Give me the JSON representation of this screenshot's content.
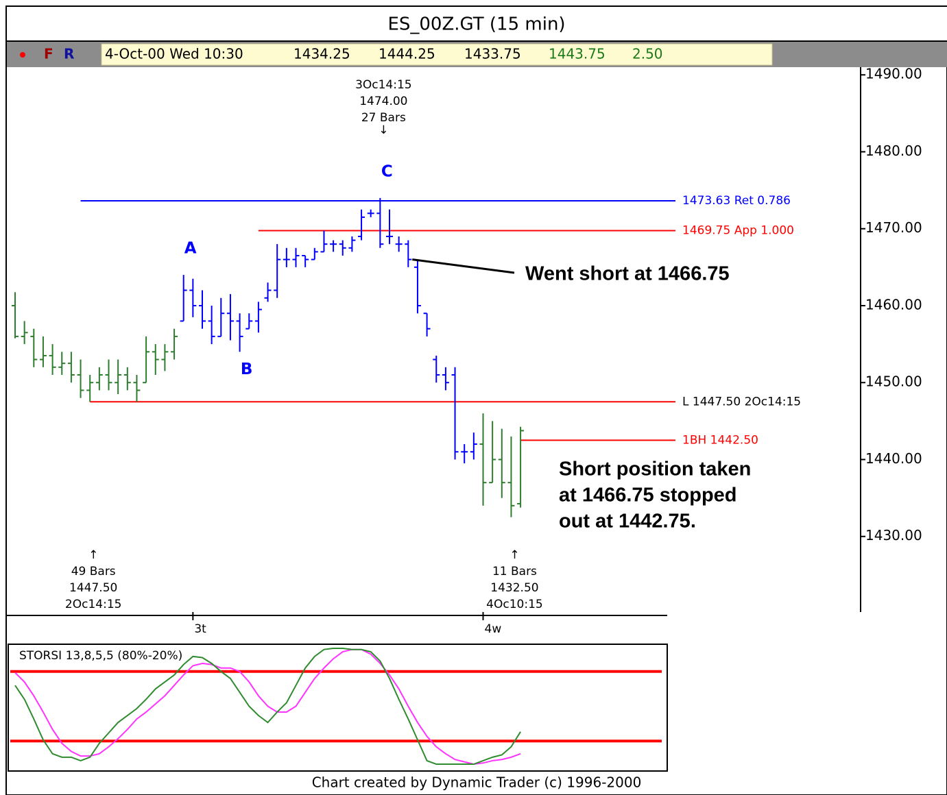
{
  "header": {
    "title": "ES_00Z.GT (15 min)",
    "status": {
      "flags": [
        "F",
        "R"
      ],
      "date": "4-Oct-00 Wed 10:30",
      "fields": [
        "1434.25",
        "1444.25",
        "1433.75",
        "1443.75",
        "2.50"
      ]
    }
  },
  "chart_data": [
    {
      "type": "ohlc",
      "categories": [
        null,
        null,
        null,
        null,
        null,
        null,
        null,
        null,
        null,
        null,
        null,
        null,
        null,
        null,
        null,
        null,
        null,
        null,
        null,
        "3t",
        null,
        null,
        null,
        null,
        null,
        null,
        null,
        null,
        null,
        null,
        null,
        null,
        null,
        null,
        null,
        null,
        null,
        null,
        null,
        null,
        null,
        null,
        null,
        null,
        null,
        null,
        null,
        null,
        null,
        null,
        "4w",
        null,
        null,
        null,
        null
      ],
      "open": [
        1460,
        1456,
        1456,
        1453,
        1453.5,
        1452,
        1452.5,
        1451,
        1449,
        1450,
        1451,
        1450,
        1451,
        1450,
        1450,
        1454,
        1453,
        1454,
        1458,
        1462,
        1460,
        1458,
        1456,
        1459,
        1458,
        1457,
        1458,
        1461,
        1462,
        1466,
        1466,
        1466.5,
        1466,
        1467,
        1468,
        1468,
        1467.5,
        1469,
        1472,
        1472,
        1469,
        1468,
        1468,
        1465,
        1459,
        1453,
        1451,
        1451,
        1441,
        1441,
        1442,
        1437,
        1440,
        1437,
        1434.25
      ],
      "high": [
        1461.75,
        1458,
        1457,
        1456,
        1455,
        1454,
        1454,
        1453,
        1451,
        1452,
        1453,
        1453,
        1452,
        1451,
        1456,
        1455,
        1455,
        1457,
        1464,
        1463.5,
        1462,
        1460,
        1461,
        1461.5,
        1459,
        1459,
        1460.5,
        1463,
        1468,
        1467.5,
        1467.5,
        1466.5,
        1467.5,
        1469.75,
        1468.5,
        1468.5,
        1469,
        1472.5,
        1472.5,
        1474,
        1472.5,
        1469,
        1468.5,
        1466,
        1459,
        1453.5,
        1452,
        1452,
        1442,
        1443.5,
        1446,
        1445,
        1444,
        1443,
        1444.25
      ],
      "low": [
        1455.75,
        1455,
        1452,
        1452,
        1451,
        1451,
        1450,
        1448,
        1447.5,
        1449,
        1449,
        1448.5,
        1449,
        1447.5,
        1450,
        1451,
        1451.5,
        1453,
        1458,
        1458.5,
        1457,
        1455,
        1456,
        1455.5,
        1454,
        1457,
        1456.5,
        1460.5,
        1461,
        1465,
        1465,
        1465,
        1466,
        1467,
        1467,
        1466.5,
        1467,
        1468.5,
        1471.5,
        1467.5,
        1468,
        1467,
        1465,
        1459,
        1456,
        1450,
        1449,
        1440,
        1439.5,
        1440,
        1434,
        1437,
        1435,
        1432.5,
        1433.75
      ],
      "close": [
        1456,
        1456.5,
        1453,
        1453.5,
        1452,
        1452.5,
        1451,
        1449,
        1450,
        1451,
        1450,
        1451,
        1450,
        1449,
        1454,
        1453,
        1454,
        1456,
        1462,
        1460,
        1458,
        1456,
        1459,
        1458,
        1456,
        1458,
        1459.5,
        1462,
        1466,
        1466,
        1466.5,
        1466,
        1467,
        1468,
        1468,
        1467.5,
        1468.5,
        1471.5,
        1472,
        1468,
        1469,
        1468,
        1466,
        1460,
        1457,
        1451,
        1450,
        1441,
        1441,
        1442,
        1437,
        1440,
        1437,
        1434,
        1443.75
      ],
      "bar_colors": [
        "#2e7d2e",
        "#2e7d2e",
        "#2e7d2e",
        "#2e7d2e",
        "#2e7d2e",
        "#2e7d2e",
        "#2e7d2e",
        "#2e7d2e",
        "#2e7d2e",
        "#2e7d2e",
        "#2e7d2e",
        "#2e7d2e",
        "#2e7d2e",
        "#2e7d2e",
        "#2e7d2e",
        "#2e7d2e",
        "#2e7d2e",
        "#2e7d2e",
        "#0000ff",
        "#0000ff",
        "#0000ff",
        "#0000ff",
        "#0000ff",
        "#0000ff",
        "#0000ff",
        "#0000ff",
        "#0000ff",
        "#0000ff",
        "#0000ff",
        "#0000ff",
        "#0000ff",
        "#0000ff",
        "#0000ff",
        "#0000ff",
        "#0000ff",
        "#0000ff",
        "#0000ff",
        "#0000ff",
        "#0000ff",
        "#0000ff",
        "#0000ff",
        "#0000ff",
        "#0000ff",
        "#0000ff",
        "#0000ff",
        "#0000ff",
        "#0000ff",
        "#0000ff",
        "#0000ff",
        "#0000ff",
        "#2e7d2e",
        "#2e7d2e",
        "#2e7d2e",
        "#2e7d2e",
        "#2e7d2e"
      ],
      "ylim": [
        1420,
        1491
      ],
      "yticks": [
        {
          "value": 1490,
          "label": "1490.00"
        },
        {
          "value": 1480,
          "label": "1480.00"
        },
        {
          "value": 1470,
          "label": "1470.00"
        },
        {
          "value": 1460,
          "label": "1460.00"
        },
        {
          "value": 1450,
          "label": "1450.00"
        },
        {
          "value": 1440,
          "label": "1440.00"
        },
        {
          "value": 1430,
          "label": "1430.00"
        }
      ],
      "levels": [
        {
          "value": 1473.63,
          "label": "1473.63 Ret 0.786",
          "color": "#0000ff",
          "label_color": "#0000ff",
          "from_bar": 7
        },
        {
          "value": 1469.75,
          "label": "1469.75 App 1.000",
          "color": "#ff0000",
          "label_color": "#ff0000",
          "from_bar": 26
        },
        {
          "value": 1447.5,
          "label": "L 1447.50 2Oc14:15",
          "color": "#ff0000",
          "label_color": "#000000",
          "from_bar": 8
        },
        {
          "value": 1442.5,
          "label": "1BH 1442.50",
          "color": "#ff0000",
          "label_color": "#ff0000",
          "from_bar": 54
        }
      ],
      "swings": [
        {
          "label": "A",
          "bar": 18,
          "side": "above"
        },
        {
          "label": "B",
          "bar": 24,
          "side": "below"
        },
        {
          "label": "C",
          "bar": 39,
          "side": "above"
        }
      ],
      "pivots": [
        {
          "bar": 39,
          "side": "above",
          "lines": [
            "3Oc14:15",
            "1474.00",
            "27 Bars"
          ]
        },
        {
          "bar": 8,
          "side": "below",
          "lines": [
            "49 Bars",
            "1447.50",
            "2Oc14:15"
          ]
        },
        {
          "bar": 53,
          "side": "below",
          "lines": [
            "11 Bars",
            "1432.50",
            "4Oc10:15"
          ]
        }
      ],
      "annotations": [
        {
          "lines": [
            "Went short at 1466.75"
          ],
          "from_bar": 42
        },
        {
          "lines": [
            "Short position taken",
            "at 1466.75 stopped",
            "out at 1442.75."
          ]
        }
      ]
    },
    {
      "type": "line",
      "title": "STORSI 13,8,5,5 (80%-20%)",
      "ylim": [
        0,
        100
      ],
      "levels": [
        80,
        20
      ],
      "level_color": "#ff0000",
      "series": [
        {
          "color": "#2e8b2e",
          "values": [
            68,
            56,
            39,
            21,
            9,
            6,
            6,
            3,
            6,
            18,
            27,
            36,
            42,
            48,
            56,
            65,
            71,
            77,
            86,
            93,
            92,
            87,
            80,
            74,
            62,
            50,
            42,
            36,
            45,
            53,
            68,
            83,
            93,
            99,
            100,
            100,
            99,
            99,
            97,
            89,
            74,
            56,
            39,
            21,
            3,
            0,
            0,
            0,
            0,
            0,
            3,
            6,
            8,
            15,
            28
          ]
        },
        {
          "color": "#ff33ff",
          "values": [
            79,
            71,
            59,
            45,
            30,
            18,
            11,
            7,
            7,
            9,
            15,
            22,
            30,
            39,
            45,
            52,
            59,
            68,
            77,
            85,
            87,
            86,
            83,
            83,
            80,
            71,
            59,
            50,
            45,
            45,
            50,
            62,
            74,
            83,
            91,
            97,
            99,
            99,
            95,
            87,
            77,
            65,
            50,
            36,
            24,
            15,
            9,
            4,
            2,
            0,
            1,
            3,
            4,
            6,
            9
          ]
        }
      ]
    }
  ],
  "footer": "Chart created by Dynamic Trader (c) 1996-2000"
}
